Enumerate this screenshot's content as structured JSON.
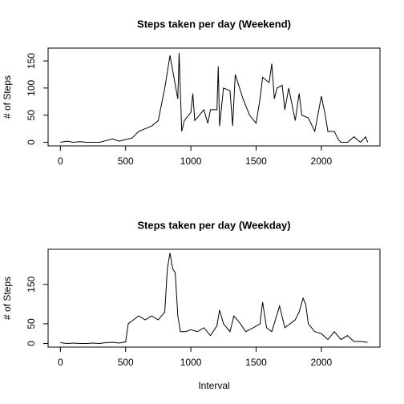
{
  "chart_data": [
    {
      "type": "line",
      "title": "Steps taken per day (Weekend)",
      "ylabel": "# of Steps",
      "color": "#000000",
      "x": [
        0,
        50,
        100,
        150,
        200,
        250,
        300,
        350,
        400,
        450,
        500,
        550,
        600,
        650,
        700,
        750,
        800,
        840,
        870,
        900,
        910,
        930,
        950,
        1000,
        1015,
        1030,
        1100,
        1130,
        1150,
        1200,
        1210,
        1220,
        1250,
        1300,
        1320,
        1340,
        1400,
        1450,
        1500,
        1530,
        1550,
        1600,
        1620,
        1640,
        1660,
        1700,
        1720,
        1750,
        1800,
        1830,
        1850,
        1900,
        1950,
        2000,
        2030,
        2050,
        2100,
        2130,
        2150,
        2200,
        2250,
        2300,
        2340,
        2355
      ],
      "values": [
        0,
        2,
        0,
        1,
        0,
        0,
        0,
        3,
        6,
        2,
        5,
        8,
        20,
        25,
        30,
        40,
        100,
        160,
        120,
        80,
        165,
        20,
        40,
        55,
        90,
        40,
        60,
        35,
        60,
        60,
        140,
        30,
        100,
        95,
        30,
        125,
        80,
        50,
        35,
        80,
        120,
        110,
        145,
        80,
        100,
        105,
        60,
        100,
        40,
        90,
        50,
        45,
        20,
        85,
        50,
        20,
        20,
        5,
        0,
        0,
        10,
        0,
        10,
        0
      ],
      "xlim": [
        -94.2,
        2449.2
      ],
      "ylim": [
        -6.7,
        173.7
      ],
      "xticks": [
        0,
        500,
        1000,
        1500,
        2000
      ],
      "yticks": [
        0,
        50,
        100,
        150
      ]
    },
    {
      "type": "line",
      "title": "Steps taken per day (Weekday)",
      "ylabel": "# of Steps",
      "xlabel": "Interval",
      "color": "#000000",
      "x": [
        0,
        50,
        100,
        150,
        200,
        250,
        300,
        350,
        400,
        450,
        500,
        520,
        560,
        600,
        650,
        700,
        750,
        800,
        820,
        840,
        860,
        880,
        900,
        920,
        960,
        1000,
        1050,
        1100,
        1150,
        1200,
        1220,
        1250,
        1300,
        1330,
        1380,
        1420,
        1480,
        1530,
        1550,
        1580,
        1620,
        1680,
        1720,
        1800,
        1830,
        1860,
        1880,
        1900,
        1950,
        2000,
        2050,
        2100,
        2150,
        2200,
        2250,
        2300,
        2355
      ],
      "values": [
        2,
        0,
        1,
        0,
        0,
        1,
        0,
        2,
        3,
        1,
        4,
        50,
        60,
        70,
        60,
        70,
        60,
        80,
        190,
        230,
        190,
        180,
        70,
        30,
        30,
        35,
        30,
        40,
        20,
        45,
        85,
        50,
        30,
        70,
        50,
        30,
        40,
        50,
        105,
        40,
        30,
        95,
        40,
        60,
        80,
        115,
        100,
        50,
        30,
        25,
        10,
        30,
        10,
        20,
        5,
        5,
        3
      ],
      "xlim": [
        -94.2,
        2449.2
      ],
      "ylim": [
        -9.2,
        239.2
      ],
      "xticks": [
        0,
        500,
        1000,
        1500,
        2000
      ],
      "yticks": [
        0,
        50,
        150
      ]
    }
  ]
}
